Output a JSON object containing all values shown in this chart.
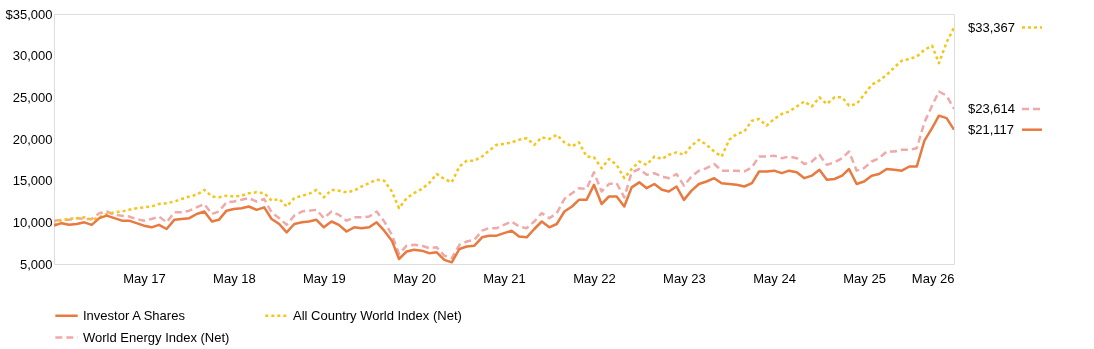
{
  "chart_data": {
    "type": "line",
    "x": [
      "2016-05",
      "2016-06",
      "2016-07",
      "2016-08",
      "2016-09",
      "2016-10",
      "2016-11",
      "2016-12",
      "2017-01",
      "2017-02",
      "2017-03",
      "2017-04",
      "2017-05",
      "2017-06",
      "2017-07",
      "2017-08",
      "2017-09",
      "2017-10",
      "2017-11",
      "2017-12",
      "2018-01",
      "2018-02",
      "2018-03",
      "2018-04",
      "2018-05",
      "2018-06",
      "2018-07",
      "2018-08",
      "2018-09",
      "2018-10",
      "2018-11",
      "2018-12",
      "2019-01",
      "2019-02",
      "2019-03",
      "2019-04",
      "2019-05",
      "2019-06",
      "2019-07",
      "2019-08",
      "2019-09",
      "2019-10",
      "2019-11",
      "2019-12",
      "2020-01",
      "2020-02",
      "2020-03",
      "2020-04",
      "2020-05",
      "2020-06",
      "2020-07",
      "2020-08",
      "2020-09",
      "2020-10",
      "2020-11",
      "2020-12",
      "2021-01",
      "2021-02",
      "2021-03",
      "2021-04",
      "2021-05",
      "2021-06",
      "2021-07",
      "2021-08",
      "2021-09",
      "2021-10",
      "2021-11",
      "2021-12",
      "2022-01",
      "2022-02",
      "2022-03",
      "2022-04",
      "2022-05",
      "2022-06",
      "2022-07",
      "2022-08",
      "2022-09",
      "2022-10",
      "2022-11",
      "2022-12",
      "2023-01",
      "2023-02",
      "2023-03",
      "2023-04",
      "2023-05",
      "2023-06",
      "2023-07",
      "2023-08",
      "2023-09",
      "2023-10",
      "2023-11",
      "2023-12",
      "2024-01",
      "2024-02",
      "2024-03",
      "2024-04",
      "2024-05",
      "2024-06",
      "2024-07",
      "2024-08",
      "2024-09",
      "2024-10",
      "2024-11",
      "2024-12",
      "2025-01",
      "2025-02",
      "2025-03",
      "2025-04",
      "2025-05",
      "2025-06",
      "2025-07",
      "2025-08",
      "2025-09",
      "2025-10",
      "2025-11",
      "2025-12",
      "2026-01",
      "2026-02",
      "2026-03",
      "2026-04",
      "2026-05"
    ],
    "series": [
      {
        "name": "Investor A Shares",
        "color": "#e8793f",
        "line_style": "solid",
        "values": [
          9600,
          9900,
          9700,
          9800,
          10000,
          9700,
          10500,
          10800,
          10500,
          10200,
          10200,
          9900,
          9600,
          9400,
          9700,
          9200,
          10300,
          10400,
          10500,
          11000,
          11300,
          10100,
          10300,
          11400,
          11600,
          11700,
          11900,
          11500,
          11800,
          10400,
          9800,
          8800,
          9800,
          10000,
          10100,
          10300,
          9400,
          10100,
          9700,
          8900,
          9400,
          9300,
          9400,
          10000,
          9000,
          7800,
          5600,
          6500,
          6700,
          6600,
          6300,
          6400,
          5500,
          5200,
          6800,
          7100,
          7200,
          8200,
          8400,
          8400,
          8700,
          9000,
          8300,
          8200,
          9200,
          10100,
          9400,
          9800,
          11300,
          11900,
          12700,
          12700,
          14500,
          12200,
          13100,
          13100,
          11900,
          14200,
          14800,
          14100,
          14600,
          13900,
          13700,
          14300,
          12700,
          13800,
          14600,
          14900,
          15300,
          14700,
          14600,
          14500,
          14300,
          14700,
          16100,
          16100,
          16200,
          15900,
          16200,
          16000,
          15300,
          15600,
          16300,
          15100,
          15200,
          15600,
          16400,
          14600,
          14900,
          15600,
          15800,
          16400,
          16300,
          16200,
          16700,
          16700,
          19800,
          21300,
          22800,
          22500,
          21117
        ],
        "value_labels": [
          null,
          null,
          null,
          null,
          null,
          null,
          null,
          null,
          null,
          null,
          null,
          null,
          null,
          null,
          null,
          null,
          null,
          null,
          null,
          null,
          null,
          null,
          null,
          null,
          null,
          null,
          null,
          null,
          null,
          null,
          null,
          null,
          null,
          null,
          null,
          null,
          null,
          null,
          null,
          null,
          null,
          null,
          null,
          null,
          null,
          null,
          null,
          null,
          null,
          null,
          null,
          null,
          null,
          null,
          null,
          null,
          null,
          null,
          null,
          null,
          null,
          null,
          null,
          null,
          null,
          null,
          null,
          null,
          null,
          null,
          null,
          null,
          null,
          null,
          null,
          null,
          null,
          null,
          null,
          null,
          null,
          null,
          null,
          null,
          null,
          null,
          null,
          null,
          null,
          null,
          null,
          null,
          null,
          null,
          null,
          null,
          null,
          null,
          null,
          null,
          null,
          null,
          null,
          null,
          null,
          null,
          null,
          null,
          null,
          null,
          null,
          null,
          null,
          null,
          null,
          null,
          null,
          null,
          null,
          null,
          "$21,117"
        ]
      },
      {
        "name": "All Country World Index (Net)",
        "color": "#f5c518",
        "line_style": "dotted",
        "values": [
          9700,
          10300,
          10400,
          10500,
          10600,
          10300,
          10600,
          11000,
          11200,
          11300,
          11500,
          11700,
          11800,
          11900,
          12200,
          12300,
          12500,
          12800,
          13100,
          13300,
          13900,
          13100,
          13000,
          13200,
          13100,
          13200,
          13500,
          13600,
          13500,
          12600,
          12800,
          11900,
          12900,
          13200,
          13400,
          13900,
          13000,
          13900,
          13800,
          13600,
          13800,
          14300,
          14700,
          15100,
          15000,
          13700,
          11700,
          12900,
          13500,
          14000,
          14700,
          15800,
          15200,
          14800,
          16700,
          17400,
          17400,
          17900,
          18600,
          19300,
          19400,
          19600,
          19900,
          20100,
          19300,
          20200,
          20000,
          20500,
          19600,
          19100,
          19600,
          17900,
          17800,
          16500,
          17600,
          16900,
          15300,
          16400,
          17300,
          16900,
          17900,
          17600,
          18100,
          18400,
          18100,
          19200,
          19900,
          19300,
          18500,
          17900,
          19900,
          20600,
          20900,
          22200,
          22400,
          21600,
          22400,
          23000,
          23300,
          23900,
          24500,
          23900,
          25000,
          24200,
          25000,
          25000,
          24000,
          24200,
          25300,
          26500,
          27000,
          27700,
          28600,
          29400,
          29600,
          29900,
          30700,
          31200,
          29100,
          31600,
          33367
        ],
        "value_labels": [
          null,
          null,
          null,
          null,
          null,
          null,
          null,
          null,
          null,
          null,
          null,
          null,
          null,
          null,
          null,
          null,
          null,
          null,
          null,
          null,
          null,
          null,
          null,
          null,
          null,
          null,
          null,
          null,
          null,
          null,
          null,
          null,
          null,
          null,
          null,
          null,
          null,
          null,
          null,
          null,
          null,
          null,
          null,
          null,
          null,
          null,
          null,
          null,
          null,
          null,
          null,
          null,
          null,
          null,
          null,
          null,
          null,
          null,
          null,
          null,
          null,
          null,
          null,
          null,
          null,
          null,
          null,
          null,
          null,
          null,
          null,
          null,
          null,
          null,
          null,
          null,
          null,
          null,
          null,
          null,
          null,
          null,
          null,
          null,
          null,
          null,
          null,
          null,
          null,
          null,
          null,
          null,
          null,
          null,
          null,
          null,
          null,
          null,
          null,
          null,
          null,
          null,
          null,
          null,
          null,
          null,
          null,
          null,
          null,
          null,
          null,
          null,
          null,
          null,
          null,
          null,
          null,
          null,
          null,
          null,
          "$33,367"
        ]
      },
      {
        "name": "World Energy Index (Net)",
        "color": "#f0a8a8",
        "line_style": "dashed",
        "values": [
          10200,
          10300,
          10300,
          10500,
          10400,
          10400,
          11100,
          11300,
          10900,
          10800,
          10700,
          10400,
          10200,
          10400,
          10700,
          10000,
          11200,
          11200,
          11400,
          11800,
          12200,
          11000,
          11300,
          12400,
          12500,
          12700,
          12900,
          12500,
          12800,
          11200,
          10500,
          9700,
          10800,
          11300,
          11400,
          11500,
          10500,
          11300,
          10900,
          10200,
          10600,
          10600,
          10700,
          11300,
          10100,
          8500,
          6200,
          7200,
          7300,
          7200,
          6900,
          7000,
          6000,
          5700,
          7300,
          7700,
          7900,
          9000,
          9300,
          9300,
          9700,
          10100,
          9500,
          9300,
          10100,
          11100,
          10500,
          11100,
          12800,
          13500,
          14100,
          14000,
          16000,
          13700,
          14600,
          14700,
          13000,
          16000,
          16400,
          15700,
          15900,
          15500,
          15300,
          15800,
          14400,
          15500,
          16200,
          16500,
          17000,
          16200,
          16200,
          16200,
          16100,
          16600,
          17900,
          17900,
          18000,
          17700,
          17900,
          17700,
          17000,
          17300,
          18100,
          16900,
          17200,
          17700,
          18500,
          16200,
          16500,
          17300,
          17700,
          18500,
          18500,
          18700,
          18700,
          18900,
          22000,
          24000,
          25700,
          25200,
          23614
        ],
        "value_labels": [
          null,
          null,
          null,
          null,
          null,
          null,
          null,
          null,
          null,
          null,
          null,
          null,
          null,
          null,
          null,
          null,
          null,
          null,
          null,
          null,
          null,
          null,
          null,
          null,
          null,
          null,
          null,
          null,
          null,
          null,
          null,
          null,
          null,
          null,
          null,
          null,
          null,
          null,
          null,
          null,
          null,
          null,
          null,
          null,
          null,
          null,
          null,
          null,
          null,
          null,
          null,
          null,
          null,
          null,
          null,
          null,
          null,
          null,
          null,
          null,
          null,
          null,
          null,
          null,
          null,
          null,
          null,
          null,
          null,
          null,
          null,
          null,
          null,
          null,
          null,
          null,
          null,
          null,
          null,
          null,
          null,
          null,
          null,
          null,
          null,
          null,
          null,
          null,
          null,
          null,
          null,
          null,
          null,
          null,
          null,
          null,
          null,
          null,
          null,
          null,
          null,
          null,
          null,
          null,
          null,
          null,
          null,
          null,
          null,
          null,
          null,
          null,
          null,
          null,
          null,
          null,
          null,
          null,
          null,
          null,
          "$23,614"
        ]
      }
    ],
    "xlim": [
      "2016-05",
      "2026-05"
    ],
    "xticks": [
      {
        "value": "2017-05",
        "label": "May 17"
      },
      {
        "value": "2018-05",
        "label": "May 18"
      },
      {
        "value": "2019-05",
        "label": "May 19"
      },
      {
        "value": "2020-05",
        "label": "May 20"
      },
      {
        "value": "2021-05",
        "label": "May 21"
      },
      {
        "value": "2022-05",
        "label": "May 22"
      },
      {
        "value": "2023-05",
        "label": "May 23"
      },
      {
        "value": "2024-05",
        "label": "May 24"
      },
      {
        "value": "2025-05",
        "label": "May 25"
      },
      {
        "value": "2026-05",
        "label": "May 26"
      }
    ],
    "ylim": [
      5000,
      35000
    ],
    "yticks": [
      {
        "value": 5000,
        "label": "5,000"
      },
      {
        "value": 10000,
        "label": "10,000"
      },
      {
        "value": 15000,
        "label": "15,000"
      },
      {
        "value": 20000,
        "label": "20,000"
      },
      {
        "value": 25000,
        "label": "25,000"
      },
      {
        "value": 30000,
        "label": "30,000"
      },
      {
        "value": 35000,
        "label": "$35,000"
      }
    ],
    "grid": false,
    "legend": "bottom"
  }
}
